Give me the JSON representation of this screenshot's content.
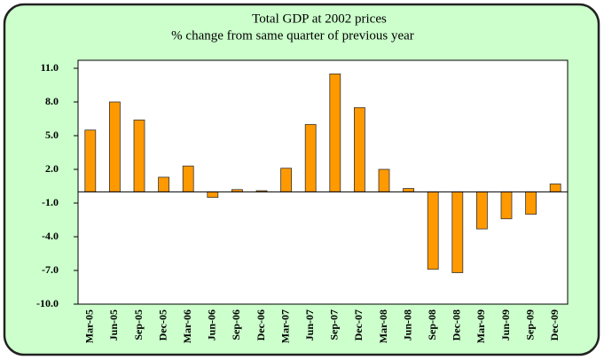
{
  "chart_data": {
    "type": "bar",
    "title": "Total GDP at 2002 prices",
    "subtitle": "% change from same quarter of previous year",
    "categories": [
      "Mar-05",
      "Jun-05",
      "Sep-05",
      "Dec-05",
      "Mar-06",
      "Jun-06",
      "Sep-06",
      "Dec-06",
      "Mar-07",
      "Jun-07",
      "Sep-07",
      "Dec-07",
      "Mar-08",
      "Jun-08",
      "Sep-08",
      "Dec-08",
      "Mar-09",
      "Jun-09",
      "Sep-09",
      "Dec-09"
    ],
    "values": [
      5.5,
      8.0,
      6.4,
      1.3,
      2.3,
      -0.5,
      0.2,
      0.1,
      2.1,
      6.0,
      10.5,
      7.5,
      2.0,
      0.3,
      -6.9,
      -7.2,
      -3.3,
      -2.4,
      -2.0,
      0.7
    ],
    "color": "#ff9900",
    "ylim": [
      -10,
      11
    ],
    "yticks": [
      {
        "value": -10,
        "label": "-10.0"
      },
      {
        "value": -7,
        "label": "-7.0"
      },
      {
        "value": -4,
        "label": "-4.0"
      },
      {
        "value": -1,
        "label": "-1.0"
      },
      {
        "value": 2,
        "label": "2.0"
      },
      {
        "value": 5,
        "label": "5.0"
      },
      {
        "value": 8,
        "label": "8.0"
      },
      {
        "value": 11,
        "label": "11.0"
      }
    ],
    "grid": false
  }
}
